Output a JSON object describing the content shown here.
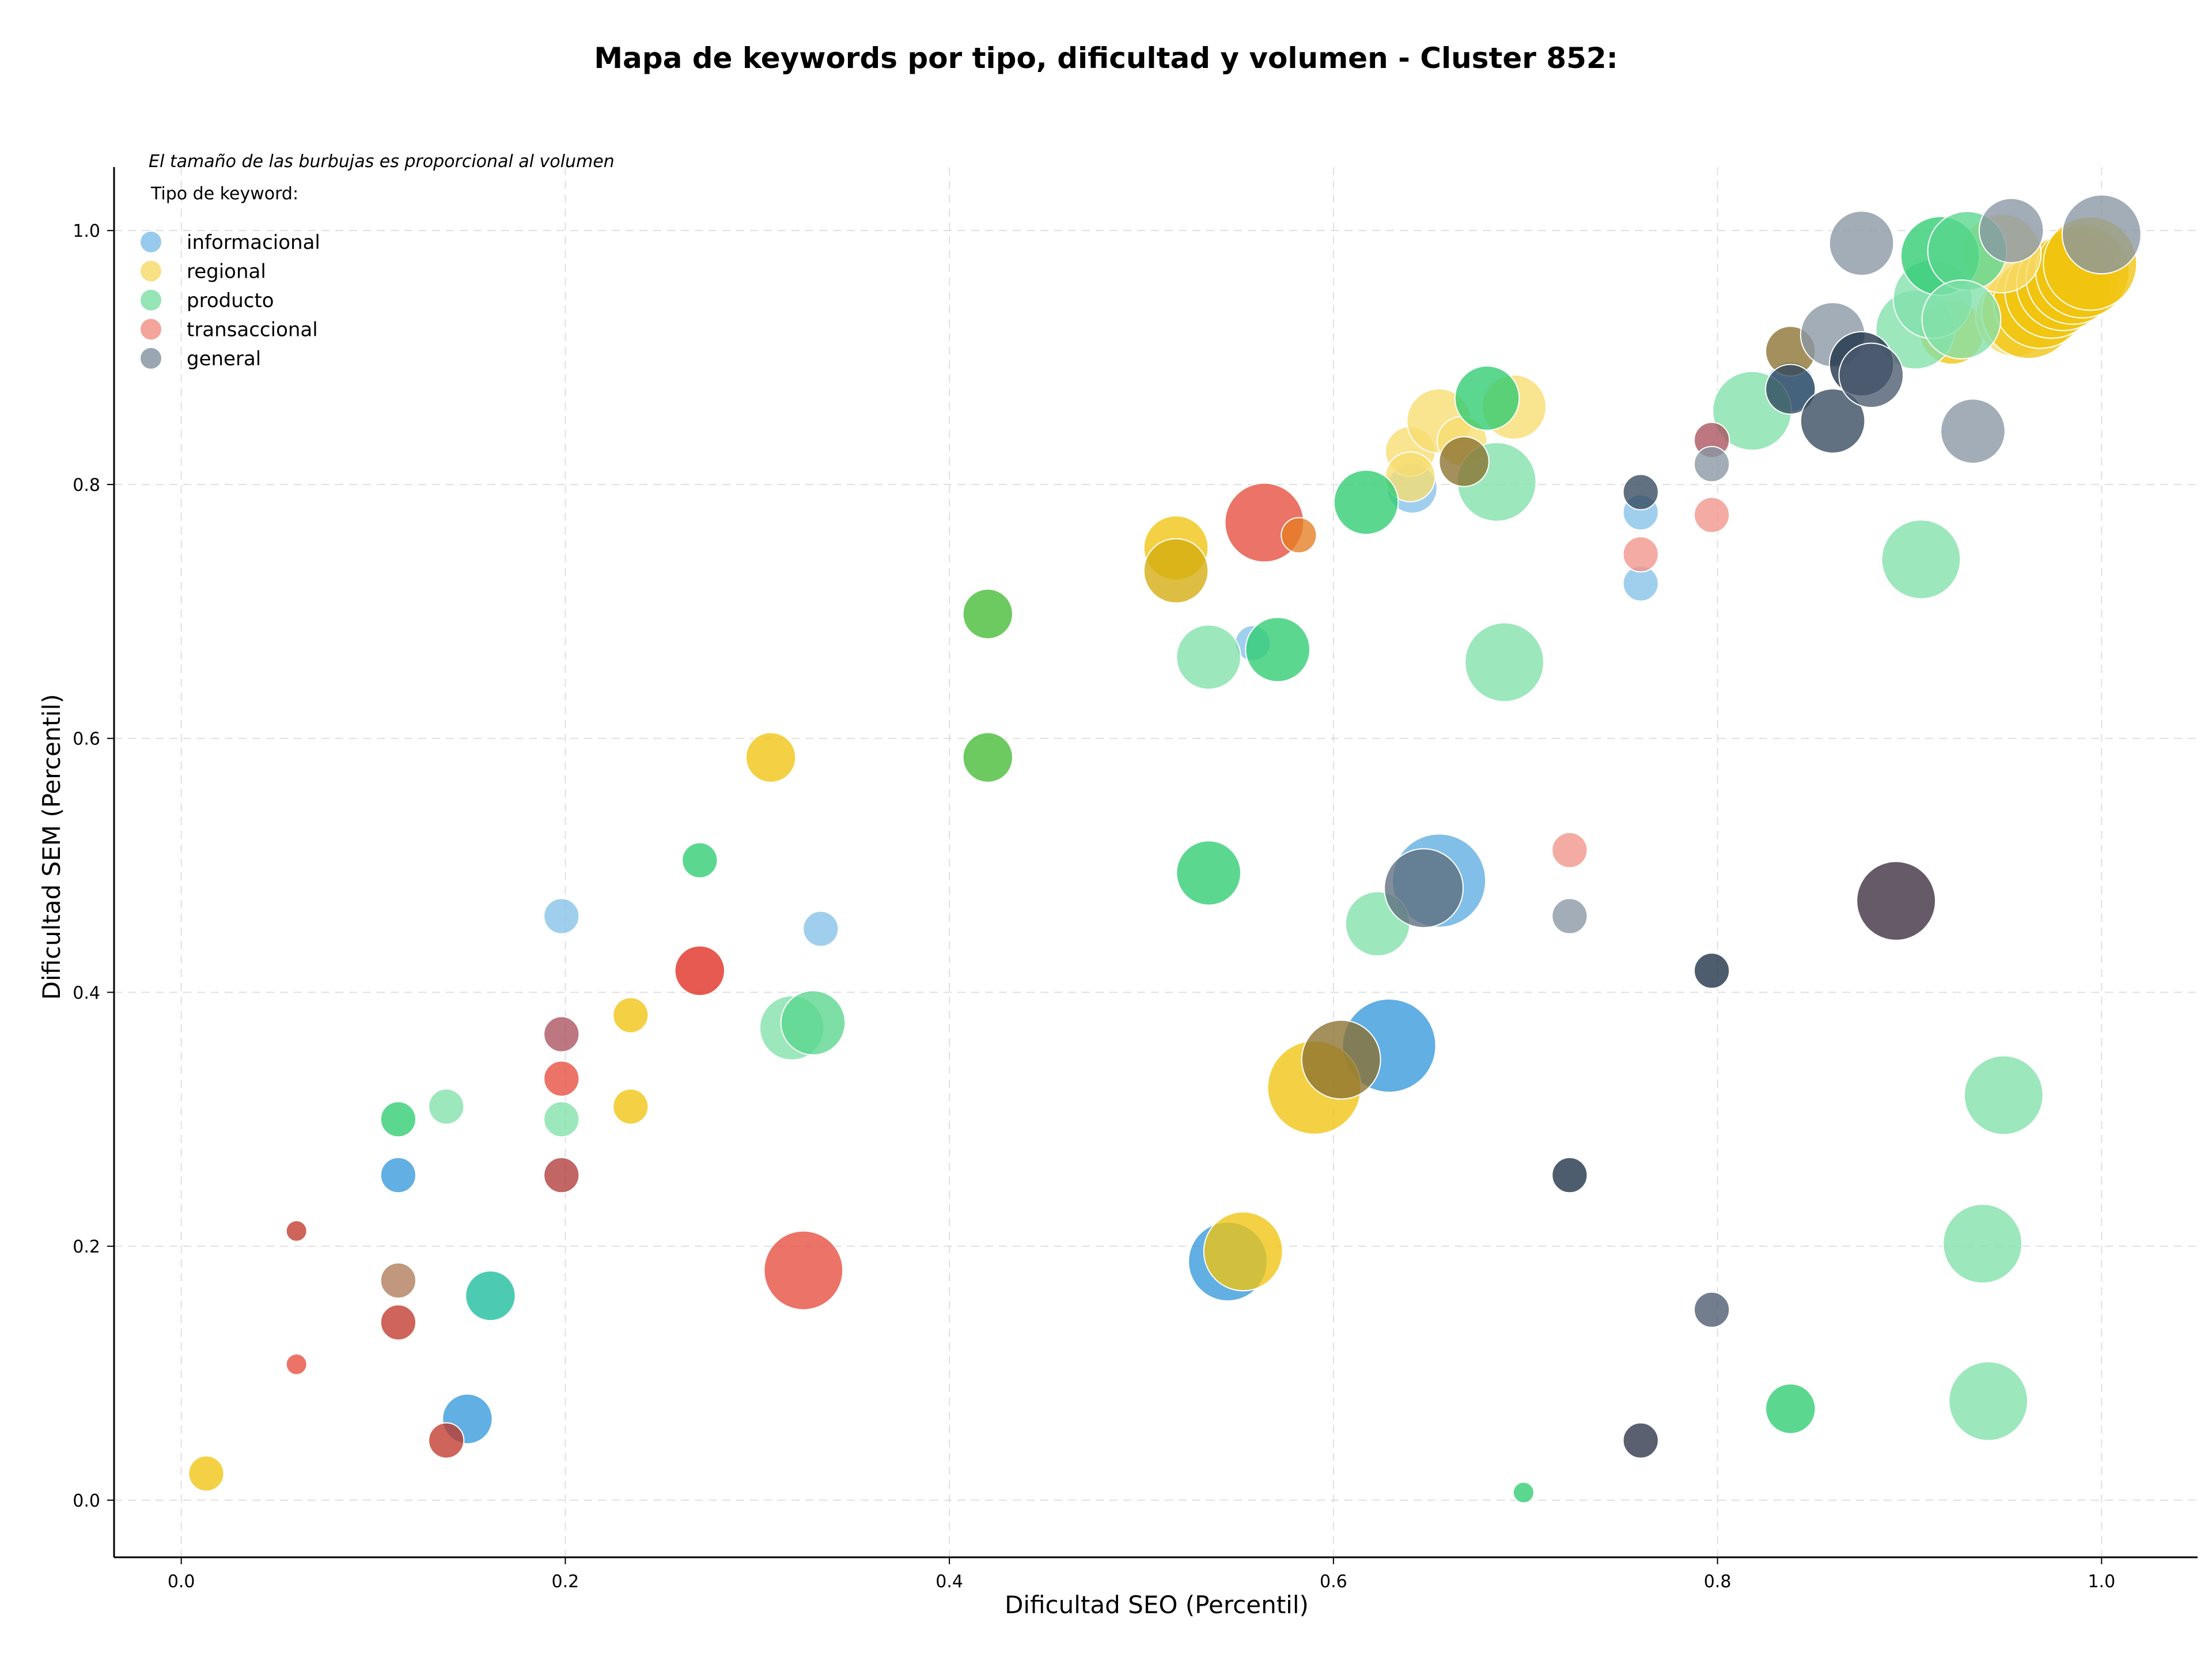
{
  "chart_data": {
    "type": "scatter",
    "title": "Mapa de keywords por tipo, dificultad y volumen - Cluster 852:",
    "xlabel": "Dificultad SEO (Percentil)",
    "ylabel": "Dificultad SEM (Percentil)",
    "annotation": "El tamaño de las burbujas es proporcional al volumen",
    "legend_title": "Tipo de keyword:",
    "legend_position": "top-left",
    "grid": true,
    "xlim": [
      -0.035,
      1.05
    ],
    "ylim": [
      -0.045,
      1.05
    ],
    "xticks": [
      "0.0",
      "0.2",
      "0.4",
      "0.6",
      "0.8",
      "1.0"
    ],
    "xtick_values": [
      0.0,
      0.2,
      0.4,
      0.6,
      0.8,
      1.0
    ],
    "yticks": [
      "0.0",
      "0.2",
      "0.4",
      "0.6",
      "0.8",
      "1.0"
    ],
    "ytick_values": [
      0.0,
      0.2,
      0.4,
      0.6,
      0.8,
      1.0
    ],
    "series": [
      {
        "name": "informacional",
        "color": "#85c1e9",
        "points": [
          {
            "x": 0.198,
            "y": 0.46,
            "s": 2,
            "c": "#85c1e9"
          },
          {
            "x": 0.333,
            "y": 0.45,
            "s": 2,
            "c": "#85c1e9"
          },
          {
            "x": 0.113,
            "y": 0.256,
            "s": 2,
            "c": "#3498db"
          },
          {
            "x": 0.149,
            "y": 0.064,
            "s": 3,
            "c": "#3498db"
          },
          {
            "x": 0.558,
            "y": 0.675,
            "s": 2,
            "c": "#85c1e9"
          },
          {
            "x": 0.545,
            "y": 0.188,
            "s": 5,
            "c": "#3498db"
          },
          {
            "x": 0.629,
            "y": 0.358,
            "s": 6,
            "c": "#3498db"
          },
          {
            "x": 0.655,
            "y": 0.488,
            "s": 6,
            "c": "#5dade2"
          },
          {
            "x": 0.641,
            "y": 0.797,
            "s": 3,
            "c": "#85c1e9"
          },
          {
            "x": 0.76,
            "y": 0.778,
            "s": 2,
            "c": "#85c1e9"
          },
          {
            "x": 0.76,
            "y": 0.722,
            "s": 2,
            "c": "#85c1e9"
          },
          {
            "x": 0.838,
            "y": 0.877,
            "s": 3,
            "c": "#5dade2"
          }
        ]
      },
      {
        "name": "regional",
        "color": "#f7dc6f",
        "points": [
          {
            "x": 0.013,
            "y": 0.021,
            "s": 2,
            "c": "#f1c40f"
          },
          {
            "x": 0.234,
            "y": 0.382,
            "s": 2,
            "c": "#f1c40f"
          },
          {
            "x": 0.234,
            "y": 0.31,
            "s": 2,
            "c": "#f1c40f"
          },
          {
            "x": 0.307,
            "y": 0.585,
            "s": 3,
            "c": "#f1c40f"
          },
          {
            "x": 0.518,
            "y": 0.75,
            "s": 4,
            "c": "#f1c40f"
          },
          {
            "x": 0.518,
            "y": 0.732,
            "s": 4,
            "c": "#d4ac0d"
          },
          {
            "x": 0.553,
            "y": 0.196,
            "s": 5,
            "c": "#f1c40f"
          },
          {
            "x": 0.59,
            "y": 0.325,
            "s": 6,
            "c": "#f1c40f"
          },
          {
            "x": 0.64,
            "y": 0.826,
            "s": 3,
            "c": "#f7dc6f"
          },
          {
            "x": 0.655,
            "y": 0.85,
            "s": 4,
            "c": "#f7dc6f"
          },
          {
            "x": 0.64,
            "y": 0.806,
            "s": 3,
            "c": "#f7dc6f"
          },
          {
            "x": 0.667,
            "y": 0.834,
            "s": 3,
            "c": "#f7dc6f"
          },
          {
            "x": 0.694,
            "y": 0.861,
            "s": 4,
            "c": "#f7dc6f"
          },
          {
            "x": 0.922,
            "y": 0.92,
            "s": 4,
            "c": "#f1c40f"
          },
          {
            "x": 0.955,
            "y": 0.932,
            "s": 5,
            "c": "#f7dc6f"
          },
          {
            "x": 0.962,
            "y": 0.936,
            "s": 6,
            "c": "#f1c40f"
          },
          {
            "x": 0.968,
            "y": 0.944,
            "s": 6,
            "c": "#f1c40f"
          },
          {
            "x": 0.974,
            "y": 0.952,
            "s": 6,
            "c": "#f1c40f"
          },
          {
            "x": 0.98,
            "y": 0.958,
            "s": 6,
            "c": "#f1c40f"
          },
          {
            "x": 0.985,
            "y": 0.963,
            "s": 6,
            "c": "#f1c40f"
          },
          {
            "x": 0.99,
            "y": 0.968,
            "s": 6,
            "c": "#f1c40f"
          },
          {
            "x": 0.994,
            "y": 0.974,
            "s": 6,
            "c": "#f1c40f"
          },
          {
            "x": 0.948,
            "y": 0.982,
            "s": 5,
            "c": "#f7dc6f"
          }
        ]
      },
      {
        "name": "producto",
        "color": "#82e0aa",
        "points": [
          {
            "x": 0.113,
            "y": 0.3,
            "s": 2,
            "c": "#2ecc71"
          },
          {
            "x": 0.138,
            "y": 0.31,
            "s": 2,
            "c": "#82e0aa"
          },
          {
            "x": 0.198,
            "y": 0.3,
            "s": 2,
            "c": "#82e0aa"
          },
          {
            "x": 0.161,
            "y": 0.161,
            "s": 3,
            "c": "#1abc9c"
          },
          {
            "x": 0.27,
            "y": 0.504,
            "s": 2,
            "c": "#2ecc71"
          },
          {
            "x": 0.318,
            "y": 0.372,
            "s": 4,
            "c": "#82e0aa"
          },
          {
            "x": 0.329,
            "y": 0.376,
            "s": 4,
            "c": "#58d68d"
          },
          {
            "x": 0.42,
            "y": 0.698,
            "s": 3,
            "c": "#44bb33"
          },
          {
            "x": 0.42,
            "y": 0.585,
            "s": 3,
            "c": "#44bb33"
          },
          {
            "x": 0.535,
            "y": 0.664,
            "s": 4,
            "c": "#82e0aa"
          },
          {
            "x": 0.535,
            "y": 0.494,
            "s": 4,
            "c": "#2ecc71"
          },
          {
            "x": 0.571,
            "y": 0.67,
            "s": 4,
            "c": "#2ecc71"
          },
          {
            "x": 0.617,
            "y": 0.786,
            "s": 4,
            "c": "#2ecc71"
          },
          {
            "x": 0.623,
            "y": 0.454,
            "s": 4,
            "c": "#82e0aa"
          },
          {
            "x": 0.68,
            "y": 0.868,
            "s": 4,
            "c": "#2ecc71"
          },
          {
            "x": 0.685,
            "y": 0.802,
            "s": 5,
            "c": "#82e0aa"
          },
          {
            "x": 0.689,
            "y": 0.66,
            "s": 5,
            "c": "#82e0aa"
          },
          {
            "x": 0.699,
            "y": 0.006,
            "s": 1,
            "c": "#2ecc71"
          },
          {
            "x": 0.818,
            "y": 0.858,
            "s": 5,
            "c": "#82e0aa"
          },
          {
            "x": 0.838,
            "y": 0.072,
            "s": 3,
            "c": "#2ecc71"
          },
          {
            "x": 0.906,
            "y": 0.741,
            "s": 5,
            "c": "#82e0aa"
          },
          {
            "x": 0.903,
            "y": 0.922,
            "s": 5,
            "c": "#82e0aa"
          },
          {
            "x": 0.912,
            "y": 0.946,
            "s": 5,
            "c": "#82e0aa"
          },
          {
            "x": 0.916,
            "y": 0.98,
            "s": 5,
            "c": "#2ecc71"
          },
          {
            "x": 0.93,
            "y": 0.984,
            "s": 5,
            "c": "#58d68d"
          },
          {
            "x": 0.927,
            "y": 0.93,
            "s": 5,
            "c": "#82e0aa"
          },
          {
            "x": 0.949,
            "y": 0.319,
            "s": 5,
            "c": "#82e0aa"
          },
          {
            "x": 0.938,
            "y": 0.202,
            "s": 5,
            "c": "#82e0aa"
          },
          {
            "x": 0.941,
            "y": 0.078,
            "s": 5,
            "c": "#82e0aa"
          }
        ]
      },
      {
        "name": "transaccional",
        "color": "#f1948a",
        "points": [
          {
            "x": 0.06,
            "y": 0.212,
            "s": 1,
            "c": "#c0392b"
          },
          {
            "x": 0.06,
            "y": 0.107,
            "s": 1,
            "c": "#e74c3c"
          },
          {
            "x": 0.113,
            "y": 0.14,
            "s": 2,
            "c": "#c0392b"
          },
          {
            "x": 0.138,
            "y": 0.047,
            "s": 2,
            "c": "#c0392b"
          },
          {
            "x": 0.198,
            "y": 0.367,
            "s": 2,
            "c": "#a9515c"
          },
          {
            "x": 0.198,
            "y": 0.332,
            "s": 2,
            "c": "#e74c3c"
          },
          {
            "x": 0.198,
            "y": 0.256,
            "s": 2,
            "c": "#b03a3a"
          },
          {
            "x": 0.27,
            "y": 0.417,
            "s": 3,
            "c": "#e02b20"
          },
          {
            "x": 0.324,
            "y": 0.181,
            "s": 5,
            "c": "#e74c3c"
          },
          {
            "x": 0.564,
            "y": 0.77,
            "s": 5,
            "c": "#e74c3c"
          },
          {
            "x": 0.582,
            "y": 0.76,
            "s": 2,
            "c": "#e67e22"
          },
          {
            "x": 0.723,
            "y": 0.512,
            "s": 2,
            "c": "#f1948a"
          },
          {
            "x": 0.76,
            "y": 0.745,
            "s": 2,
            "c": "#f1948a"
          },
          {
            "x": 0.797,
            "y": 0.776,
            "s": 2,
            "c": "#f1948a"
          },
          {
            "x": 0.797,
            "y": 0.835,
            "s": 2,
            "c": "#a9515c"
          },
          {
            "x": 0.113,
            "y": 0.173,
            "s": 2,
            "c": "#b07a5a"
          }
        ]
      },
      {
        "name": "general",
        "color": "#8896a3",
        "points": [
          {
            "x": 0.647,
            "y": 0.482,
            "s": 5,
            "c": "#5d6d7e"
          },
          {
            "x": 0.604,
            "y": 0.347,
            "s": 5,
            "c": "#8b7130"
          },
          {
            "x": 0.668,
            "y": 0.818,
            "s": 3,
            "c": "#8b7130"
          },
          {
            "x": 0.723,
            "y": 0.46,
            "s": 2,
            "c": "#8896a3"
          },
          {
            "x": 0.723,
            "y": 0.256,
            "s": 2,
            "c": "#1b3045"
          },
          {
            "x": 0.76,
            "y": 0.794,
            "s": 2,
            "c": "#34495e"
          },
          {
            "x": 0.76,
            "y": 0.047,
            "s": 2,
            "c": "#2c3347"
          },
          {
            "x": 0.797,
            "y": 0.417,
            "s": 2,
            "c": "#1b3045"
          },
          {
            "x": 0.797,
            "y": 0.15,
            "s": 2,
            "c": "#4a5a6e"
          },
          {
            "x": 0.797,
            "y": 0.816,
            "s": 2,
            "c": "#8896a3"
          },
          {
            "x": 0.838,
            "y": 0.905,
            "s": 3,
            "c": "#8b7130"
          },
          {
            "x": 0.838,
            "y": 0.875,
            "s": 3,
            "c": "#34495e"
          },
          {
            "x": 0.86,
            "y": 0.85,
            "s": 4,
            "c": "#34495e"
          },
          {
            "x": 0.86,
            "y": 0.918,
            "s": 4,
            "c": "#8896a3"
          },
          {
            "x": 0.875,
            "y": 0.895,
            "s": 4,
            "c": "#1b3045"
          },
          {
            "x": 0.88,
            "y": 0.886,
            "s": 4,
            "c": "#4a5a6e"
          },
          {
            "x": 0.875,
            "y": 0.99,
            "s": 4,
            "c": "#8896a3"
          },
          {
            "x": 0.893,
            "y": 0.472,
            "s": 5,
            "c": "#3b2a3d"
          },
          {
            "x": 0.933,
            "y": 0.842,
            "s": 4,
            "c": "#8896a3"
          },
          {
            "x": 0.953,
            "y": 1.0,
            "s": 4,
            "c": "#8896a3"
          },
          {
            "x": 1.0,
            "y": 0.997,
            "s": 5,
            "c": "#8896a3"
          }
        ]
      }
    ]
  }
}
